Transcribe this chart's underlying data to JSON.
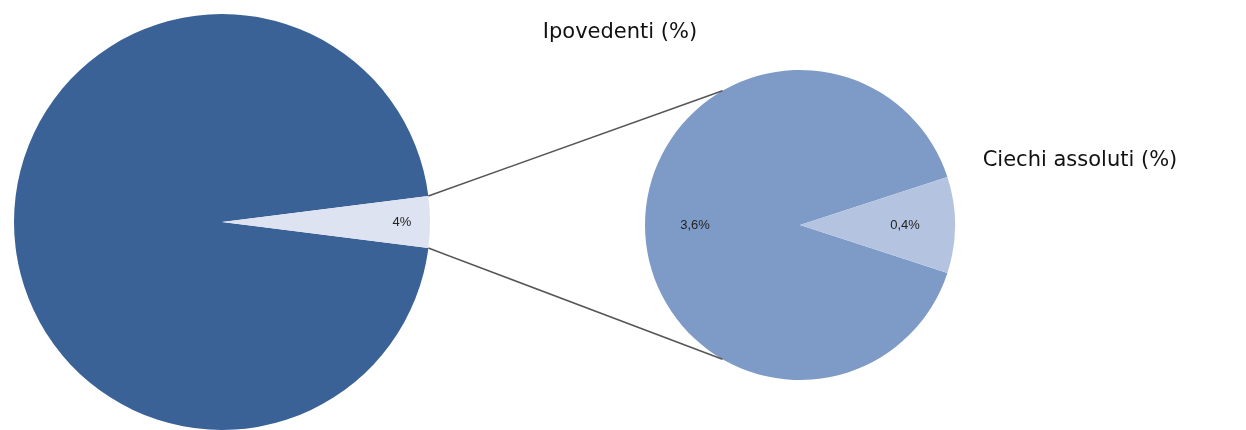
{
  "chart_data": [
    {
      "type": "pie",
      "categories": [
        null,
        null
      ],
      "values": [
        96,
        4
      ],
      "colors": [
        "#3a6296",
        "#dde3f0"
      ],
      "value_labels": [
        null,
        "4%"
      ]
    },
    {
      "type": "pie",
      "categories": [
        "Ipovedenti (%)",
        "Ciechi assoluti (%)"
      ],
      "values": [
        3.6,
        0.4
      ],
      "colors": [
        "#7e9bc8",
        "#b4c4e0"
      ],
      "value_labels": [
        "3,6%",
        "0,4%"
      ]
    }
  ]
}
